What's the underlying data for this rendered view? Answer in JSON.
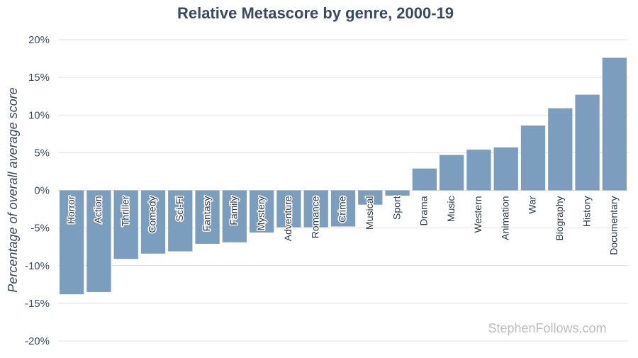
{
  "chart_data": {
    "type": "bar",
    "title": "Relative Metascore by genre, 2000-19",
    "ylabel": "Percentage of overall average score",
    "xlabel": "",
    "ylim": [
      -20,
      20
    ],
    "ytick_values": [
      20,
      15,
      10,
      5,
      0,
      -5,
      -10,
      -15,
      -20
    ],
    "ytick_labels": [
      "20%",
      "15%",
      "10%",
      "5%",
      "0%",
      "-5%",
      "-10%",
      "-15%",
      "-20%"
    ],
    "categories": [
      "Horror",
      "Action",
      "Thriller",
      "Comedy",
      "Sci-Fi",
      "Fantasy",
      "Family",
      "Mystery",
      "Adventure",
      "Romance",
      "Crime",
      "Musical",
      "Sport",
      "Drama",
      "Music",
      "Western",
      "Animation",
      "War",
      "Biography",
      "History",
      "Documentary"
    ],
    "values": [
      -13.8,
      -13.5,
      -9.1,
      -8.4,
      -8.1,
      -7.1,
      -6.9,
      -5.6,
      -4.9,
      -4.9,
      -4.8,
      -1.9,
      -0.7,
      2.9,
      4.7,
      5.4,
      5.7,
      8.6,
      10.9,
      12.7,
      17.6
    ],
    "bar_color": "#7b9ebe",
    "grid": true,
    "legend": "none",
    "credit": "StephenFollows.com"
  }
}
